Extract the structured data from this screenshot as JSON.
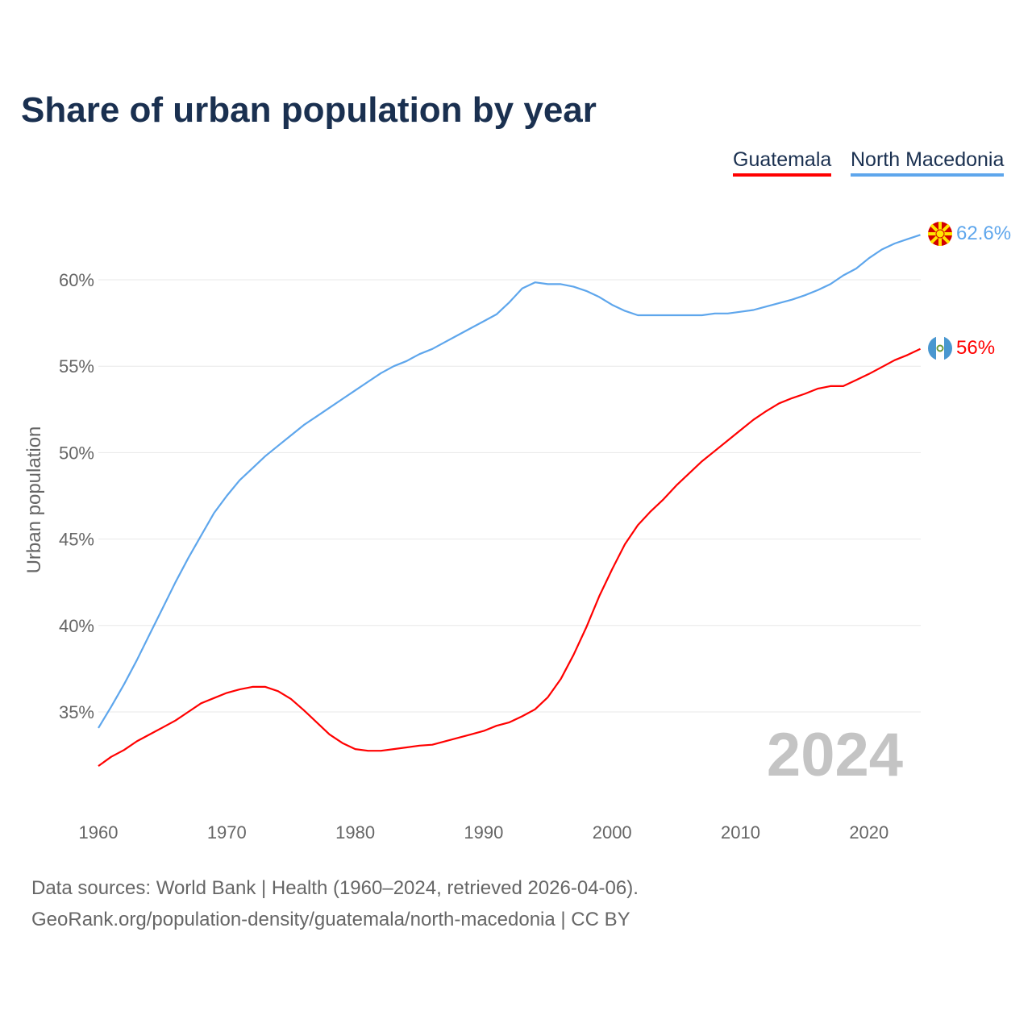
{
  "chart_data": {
    "type": "line",
    "title": "Share of urban population by year",
    "ylabel": "Urban population",
    "xlabel": "",
    "xlim": [
      1960,
      2024
    ],
    "ylim": [
      31,
      63
    ],
    "yticks": [
      35,
      40,
      45,
      50,
      55,
      60
    ],
    "ytick_labels": [
      "35%",
      "40%",
      "45%",
      "50%",
      "55%",
      "60%"
    ],
    "xticks": [
      1960,
      1970,
      1980,
      1990,
      2000,
      2010,
      2020
    ],
    "xtick_labels": [
      "1960",
      "1970",
      "1980",
      "1990",
      "2000",
      "2010",
      "2020"
    ],
    "grid": true,
    "legend_placement": "top-right",
    "year_watermark": "2024",
    "x_start": 1960,
    "series": [
      {
        "name": "Guatemala",
        "color": "#ff0000",
        "end_label": "56%",
        "flag": "guatemala-flag",
        "values": [
          31.87,
          32.4,
          32.8,
          33.3,
          33.7,
          34.1,
          34.5,
          35.0,
          35.5,
          35.8,
          36.1,
          36.3,
          36.45,
          36.45,
          36.2,
          35.75,
          35.1,
          34.4,
          33.7,
          33.2,
          32.85,
          32.75,
          32.75,
          32.85,
          32.95,
          33.05,
          33.1,
          33.3,
          33.5,
          33.7,
          33.9,
          34.2,
          34.4,
          34.75,
          35.15,
          35.85,
          36.9,
          38.3,
          39.9,
          41.7,
          43.25,
          44.7,
          45.8,
          46.6,
          47.3,
          48.1,
          48.8,
          49.5,
          50.1,
          50.7,
          51.3,
          51.9,
          52.4,
          52.85,
          53.15,
          53.4,
          53.7,
          53.85,
          53.85,
          54.2,
          54.55,
          54.95,
          55.35,
          55.65,
          56.0
        ]
      },
      {
        "name": "North Macedonia",
        "color": "#5ea6ec",
        "end_label": "62.6%",
        "flag": "north-macedonia-flag",
        "values": [
          34.07,
          35.3,
          36.6,
          38.0,
          39.5,
          41.0,
          42.5,
          43.9,
          45.2,
          46.5,
          47.5,
          48.4,
          49.1,
          49.8,
          50.4,
          51.0,
          51.6,
          52.1,
          52.6,
          53.1,
          53.6,
          54.1,
          54.6,
          55.0,
          55.3,
          55.7,
          56.0,
          56.4,
          56.8,
          57.2,
          57.6,
          58.0,
          58.7,
          59.5,
          59.85,
          59.75,
          59.75,
          59.6,
          59.35,
          59.0,
          58.55,
          58.2,
          57.95,
          57.95,
          57.95,
          57.95,
          57.95,
          57.95,
          58.05,
          58.05,
          58.15,
          58.25,
          58.45,
          58.65,
          58.85,
          59.1,
          59.4,
          59.75,
          60.25,
          60.65,
          61.25,
          61.75,
          62.1,
          62.35,
          62.6
        ]
      }
    ]
  },
  "footer": {
    "line1": "Data sources: World Bank | Health (1960–2024, retrieved 2026-04-06).",
    "line2": "GeoRank.org/population-density/guatemala/north-macedonia | CC BY"
  }
}
